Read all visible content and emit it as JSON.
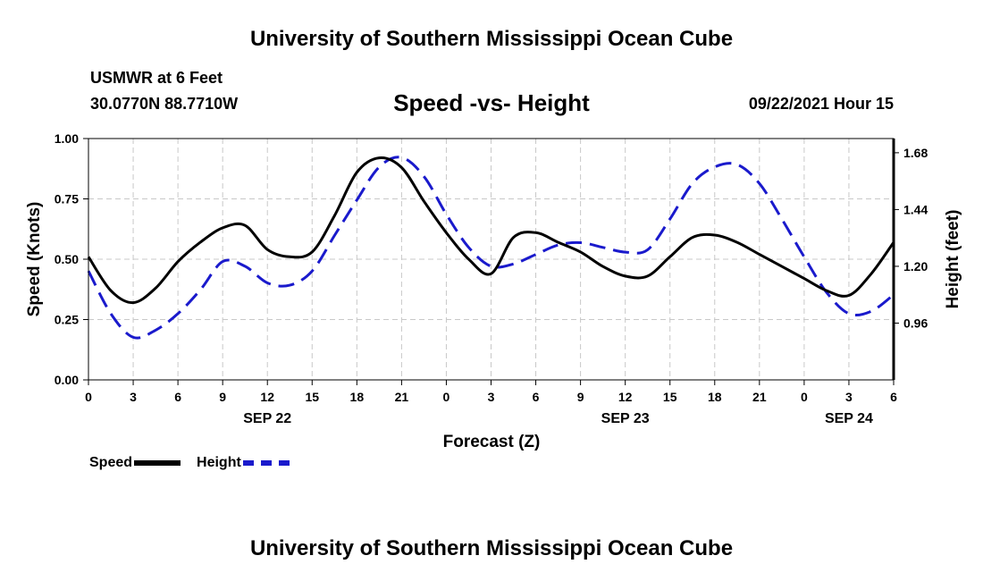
{
  "header": {
    "title": "University of Southern Mississippi Ocean Cube",
    "station": "USMWR at 6 Feet",
    "coords": "30.0770N  88.7710W",
    "subtitle": "Speed -vs- Height",
    "datetime": "09/22/2021 Hour 15"
  },
  "footer": {
    "title": "University of Southern Mississippi Ocean Cube"
  },
  "legend": {
    "speed": "Speed",
    "height": "Height"
  },
  "chart_data": {
    "type": "line",
    "xlabel": "Forecast (Z)",
    "ylabel_left": "Speed (Knots)",
    "ylabel_right": "Height (feet)",
    "ylim_left": [
      0,
      1
    ],
    "ylim_right": [
      0.72,
      1.74
    ],
    "yticks_left": [
      "0.00",
      "0.25",
      "0.50",
      "0.75",
      "1.00"
    ],
    "yticks_right": [
      "0.96",
      "1.20",
      "1.44",
      "1.68"
    ],
    "x_tick_labels": [
      "0",
      "3",
      "6",
      "9",
      "12",
      "15",
      "18",
      "21",
      "0",
      "3",
      "6",
      "9",
      "12",
      "15",
      "18",
      "21",
      "0",
      "3",
      "6"
    ],
    "date_labels": [
      {
        "label": "SEP 22",
        "hour": 12
      },
      {
        "label": "SEP 23",
        "hour": 36
      },
      {
        "label": "SEP 24",
        "hour": 51
      }
    ],
    "x_hours": [
      0,
      1.5,
      3,
      4.5,
      6,
      7.5,
      9,
      10.5,
      12,
      13.5,
      15,
      16.5,
      18,
      19.5,
      21,
      22.5,
      24,
      25.5,
      27,
      28.5,
      30,
      31.5,
      33,
      34.5,
      36,
      37.5,
      39,
      40.5,
      42,
      43.5,
      45,
      46.5,
      48,
      49.5,
      51,
      52.5,
      54
    ],
    "grid": true,
    "series": [
      {
        "name": "Speed",
        "axis": "left",
        "color": "#000000",
        "style": "solid",
        "values": [
          0.51,
          0.37,
          0.32,
          0.38,
          0.49,
          0.57,
          0.63,
          0.64,
          0.54,
          0.51,
          0.53,
          0.68,
          0.86,
          0.92,
          0.88,
          0.74,
          0.61,
          0.5,
          0.44,
          0.59,
          0.61,
          0.57,
          0.53,
          0.47,
          0.43,
          0.43,
          0.51,
          0.59,
          0.6,
          0.57,
          0.52,
          0.47,
          0.42,
          0.37,
          0.35,
          0.44,
          0.57
        ]
      },
      {
        "name": "Height",
        "axis": "right",
        "color": "#1a1acc",
        "style": "dashed",
        "values": [
          1.18,
          1.0,
          0.9,
          0.93,
          1.0,
          1.1,
          1.22,
          1.2,
          1.13,
          1.12,
          1.18,
          1.33,
          1.48,
          1.62,
          1.66,
          1.58,
          1.42,
          1.28,
          1.2,
          1.21,
          1.25,
          1.29,
          1.3,
          1.28,
          1.26,
          1.27,
          1.4,
          1.55,
          1.62,
          1.63,
          1.55,
          1.4,
          1.24,
          1.09,
          1.0,
          1.01,
          1.08
        ]
      }
    ]
  }
}
